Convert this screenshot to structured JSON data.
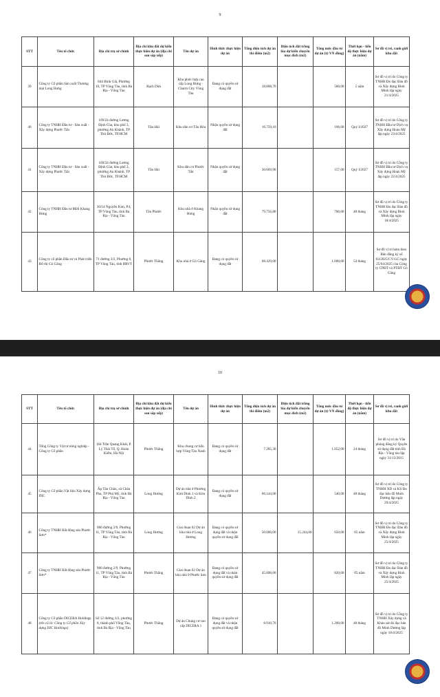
{
  "pages": [
    {
      "number": "9",
      "rows": [
        {
          "stt": "39",
          "org": "Công ty Cổ phần Sản xuất Thương mại Long Hưng",
          "hq": "844 Bình Giã, Phường 10, TP Vũng Tàu, tỉnh Bà Rịa - Vũng Tàu",
          "site": "Rạch Dừa",
          "project": "Khu phức hợp cao cấp Long Hưng - Charm City Vũng Tàu",
          "form": "Đang có quyền sử dụng đất",
          "area": "18.808,70",
          "rice": "",
          "invest": "500,00",
          "term": "5 năm",
          "map": "Sơ đồ vị trí do Công ty TNHH Đo đạc Bản đồ và Xây dựng Bình Minh lập ngày 21/4/2025"
        },
        {
          "stt": "40",
          "org": "Công ty TNHH Đầu tư - Sản xuất - Xây dựng Phước Tấn",
          "hq": "169/24 đường Lương Định Của, khu phố 3, phường An Khánh, TP Thủ Đức, TP.HCM",
          "site": "Tân Hải",
          "project": "Khu dân cư Tân Hòa",
          "form": "Nhận quyền sử dụng đất",
          "area": "16.759,10",
          "rice": "",
          "invest": "106,00",
          "term": "Quý I/2027",
          "map": "Sơ đồ vị trí do Công ty TNHH Đầu tư Dịch vụ Xây dựng Hoàn Mỹ lập ngày 23/4/2025"
        },
        {
          "stt": "41",
          "org": "Công ty TNHH Đầu tư - Sản xuất - Xây dựng Phước Tấn",
          "hq": "169/24 đường Lương Định Của, khu phố 3, phường An Khánh, TP Thủ Đức, TP.HCM",
          "site": "Tân Hải",
          "project": "Khu dân cư Phước Tấn",
          "form": "Nhận quyền sử dụng đất",
          "area": "30.669,90",
          "rice": "",
          "invest": "157,00",
          "term": "Quý I/2027",
          "map": "Sơ đồ vị trí do Công ty TNHH Đầu tư Dịch vụ Xây dựng Hoàn Mỹ lập ngày 22/4/2025"
        },
        {
          "stt": "42",
          "org": "Công ty TNHH Đầu tư BĐS Khang Hưng",
          "hq": "30/14 Nguyễn Kim, P4, TP Vũng Tàu, tỉnh Bà Rịa - Vũng Tàu",
          "site": "Tân Phước",
          "project": "Khu nhà ở Khang Hưng",
          "form": "Nhận quyền sử dụng đất",
          "area": "79.756,80",
          "rice": "",
          "invest": "700,00",
          "term": "48 tháng",
          "map": "Sơ đồ vị trí do Công ty TNHH Đo đạc Bản đồ và Xây dựng Bình Minh lập ngày 18/4/2025"
        },
        {
          "stt": "43",
          "org": "Công ty cổ phần Đầu tư và Phát triển Đô thị Gò Găng",
          "hq": "71 đường 3/2, Phường 8, TP Vũng Tàu, tỉnh BRVT",
          "site": "Phước Thắng",
          "project": "Khu nhà ở Gò Găng",
          "form": "Đang có quyền sử dụng đất",
          "area": "68.429,00",
          "rice": "",
          "invest": "1.000,00",
          "term": "54 tháng",
          "map": "Sơ đồ vị trí kèm theo Bản đăng ký số 03/2025/CV-GG ngày 25/04/2025 của Công ty CPĐT và PTĐT Gò Găng"
        }
      ]
    },
    {
      "number": "10",
      "rows": [
        {
          "stt": "44",
          "org": "Tổng Công ty Vật tư nông nghiệp - Công ty Cổ phần",
          "hq": "164 Trần Quang Khải, P. Lý Thái Tổ, Q. Hoàn Kiếm, Hà Nội",
          "site": "Phước Thắng",
          "project": "Khu chung cư hỗn hợp Vũng Tàu Xanh",
          "form": "Đang có quyền sử dụng đất",
          "area": "7.285,30",
          "rice": "",
          "invest": "1.052,00",
          "term": "24 tháng",
          "map": "Sơ đồ vị trí do Văn phòng đăng ký Quyền sử dụng đất tỉnh Bà Rịa - Vũng tàu lập ngày 31/12/2015"
        },
        {
          "stt": "45",
          "org": "Công ty Cổ phần Vật liệu Xây dựng DIC",
          "hq": "Ấp Tân Châu, xã Châu Pha, TP Phú Mỹ, tỉnh Bà Rịa - Vũng Tàu",
          "site": "Long Hương",
          "project": "Dự án nhà ở Phường Kim Dinh 1 và Kim Dinh 2",
          "form": "Đang có quyền sử dụng đất",
          "area": "66.144,00",
          "rice": "",
          "invest": "540,00",
          "term": "48 tháng",
          "map": "Sơ đồ vị trí do Công ty TNHH XD và KS Đo đạc bản đồ Minh Dương lập ngày 29/4/2025"
        },
        {
          "stt": "46",
          "org": "Công ty TNHH Bất động sản Phước Sơn*",
          "hq": "980 đường 2/9, Phường 11, TP Vũng Tàu, tỉnh Bà Rịa - Vũng Tàu",
          "site": "Long Hương",
          "project": "Giai đoạn 02 Dự án khu nhà ở Long Hương",
          "form": "Đang có quyền sử dụng đất và nhận quyền sử dụng đất",
          "area": "50.000,00",
          "rice": "15.244,00",
          "invest": "650,00",
          "term": "05 năm",
          "map": "Sơ đồ vị trí do Công ty TNHH Đo đạc Bản đồ và Xây dựng Bình Minh lập ngày 25/4/2025"
        },
        {
          "stt": "47",
          "org": "Công ty TNHH Bất động sản Phước Sơn*",
          "hq": "980 đường 2/9, Phường 11, TP Vũng Tàu, tỉnh Bà Rịa - Vũng Tàu",
          "site": "Phước Thắng",
          "project": "Giai đoạn 02 Dự án khu nhà ở Phước Sơn",
          "form": "Đang có quyền sử dụng đất và nhận quyền sử dụng đất",
          "area": "45.000,00",
          "rice": "",
          "invest": "820,00",
          "term": "05 năm",
          "map": "Sơ đồ vị trí do Công ty TNHH Đo đạc Bản đồ và Xây dựng Bình Minh lập ngày 25/4/2025"
        },
        {
          "stt": "48",
          "org": "Công ty Cổ phần DICERA Holdings",
          "org_note": "(tên cũ là: Công ty Cổ phần Xây dựng DIC Holdings)",
          "hq": "Số 12 đường 3/2, phường 8, thành phố Vũng Tàu, tỉnh Bà Rịa - Vũng Tàu",
          "site": "Phước Thắng",
          "project": "Dự án Chung cư cao cấp DICERA 1",
          "form": "Đang có quyền sử dụng đất và nhận quyền sử dụng đất",
          "area": "8.910,70",
          "rice": "",
          "invest": "1.200,00",
          "term": "48 tháng",
          "map": "Sơ đồ vị trí do Công ty TNHH Xây dựng và Khảo sát đo đạc bản đồ Minh Dương lập ngày 18/4/2025"
        }
      ]
    }
  ],
  "headers": [
    "STT",
    "Tên tổ chức",
    "Địa chỉ trụ sở chính",
    "Địa chỉ khu đất dự kiến thực hiện dự án (địa chỉ sau sắp xếp)",
    "Tên dự án",
    "Hình thức thực hiện dự án",
    "Tổng diện tích dự án thí điểm (m2)",
    "Diện tích đất trồng lúa dự kiến chuyển mục đích (m2)",
    "Tổng mức đầu tư dự án (tỷ VN đồng)",
    "Thời hạn - tiến độ thực hiện dự án (năm)",
    "Sơ đồ vị trí, ranh giới khu đất"
  ],
  "colors": {
    "separator": "#1f1f1f",
    "stamp_blue": "#2a4f9c",
    "stamp_red": "#c03030"
  }
}
